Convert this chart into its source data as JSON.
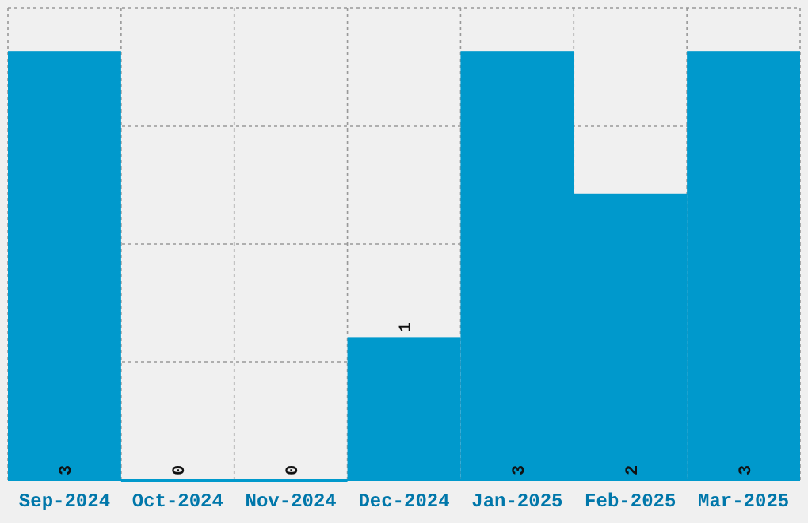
{
  "chart_data": {
    "type": "bar",
    "categories": [
      "Sep-2024",
      "Oct-2024",
      "Nov-2024",
      "Dec-2024",
      "Jan-2025",
      "Feb-2025",
      "Mar-2025"
    ],
    "values": [
      3,
      0,
      0,
      1,
      3,
      2,
      3
    ],
    "color": "#0099cc",
    "ylim": [
      0,
      3.3
    ],
    "yticks": [
      {
        "value": 0,
        "label": null
      },
      {
        "value": 0.825,
        "label": null
      },
      {
        "value": 1.65,
        "label": null
      },
      {
        "value": 2.475,
        "label": null
      },
      {
        "value": 3.3,
        "label": null
      }
    ],
    "tick_labels": "x",
    "grid": true,
    "data_labels": true
  }
}
